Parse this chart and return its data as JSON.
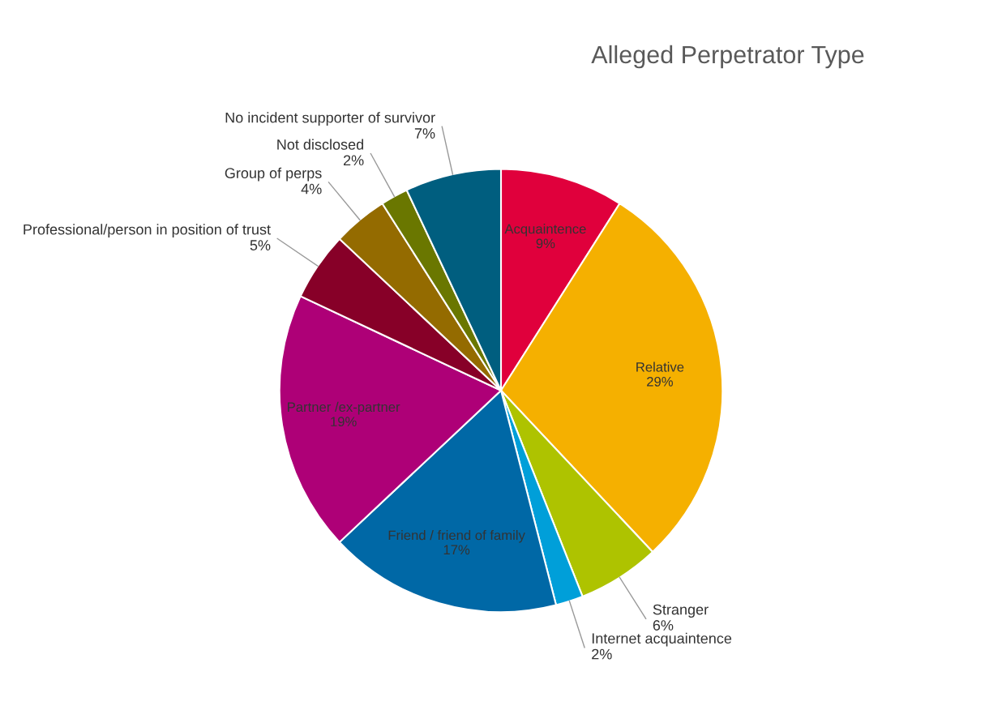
{
  "chart_data": {
    "type": "pie",
    "title": "Alleged Perpetrator Type",
    "categories": [
      "Acquaintence",
      "Relative",
      "Stranger",
      "Internet acquaintence",
      "Friend / friend of family",
      "Partner /ex-partner",
      "Professional/person in position of trust",
      "Group of perps",
      "Not disclosed",
      "No incident supporter of survivor"
    ],
    "values": [
      9,
      29,
      6,
      2,
      17,
      19,
      5,
      4,
      2,
      7
    ],
    "value_labels": [
      "9%",
      "29%",
      "6%",
      "2%",
      "17%",
      "19%",
      "5%",
      "4%",
      "2%",
      "7%"
    ],
    "colors": [
      "#e0003c",
      "#f5b000",
      "#aec300",
      "#009fd9",
      "#0068a6",
      "#ae0077",
      "#870028",
      "#946b00",
      "#6a7700",
      "#005e7f"
    ],
    "legend": false
  }
}
